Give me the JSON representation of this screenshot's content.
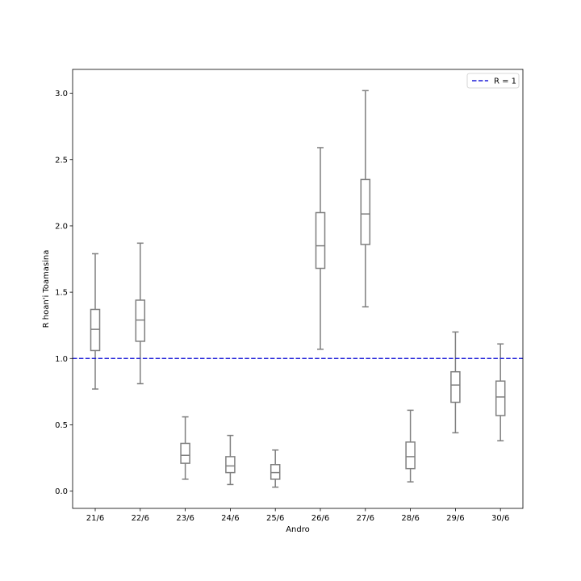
{
  "chart_data": {
    "type": "boxplot",
    "title": "",
    "xlabel": "Andro",
    "ylabel": "R hoan'i Toamasina",
    "categories": [
      "21/6",
      "22/6",
      "23/6",
      "24/6",
      "25/6",
      "26/6",
      "27/6",
      "28/6",
      "29/6",
      "30/6"
    ],
    "boxes": [
      {
        "whislo": 0.77,
        "q1": 1.06,
        "med": 1.22,
        "q3": 1.37,
        "whishi": 1.79
      },
      {
        "whislo": 0.81,
        "q1": 1.13,
        "med": 1.29,
        "q3": 1.44,
        "whishi": 1.87
      },
      {
        "whislo": 0.09,
        "q1": 0.21,
        "med": 0.27,
        "q3": 0.36,
        "whishi": 0.56
      },
      {
        "whislo": 0.05,
        "q1": 0.14,
        "med": 0.19,
        "q3": 0.26,
        "whishi": 0.42
      },
      {
        "whislo": 0.03,
        "q1": 0.09,
        "med": 0.14,
        "q3": 0.2,
        "whishi": 0.31
      },
      {
        "whislo": 1.07,
        "q1": 1.68,
        "med": 1.85,
        "q3": 2.1,
        "whishi": 2.59
      },
      {
        "whislo": 1.39,
        "q1": 1.86,
        "med": 2.09,
        "q3": 2.35,
        "whishi": 3.02
      },
      {
        "whislo": 0.07,
        "q1": 0.17,
        "med": 0.26,
        "q3": 0.37,
        "whishi": 0.61
      },
      {
        "whislo": 0.44,
        "q1": 0.67,
        "med": 0.8,
        "q3": 0.9,
        "whishi": 1.2
      },
      {
        "whislo": 0.38,
        "q1": 0.57,
        "med": 0.71,
        "q3": 0.83,
        "whishi": 1.11
      }
    ],
    "reference_line": {
      "y": 1.0,
      "label": "R = 1",
      "color": "#1f1fd8",
      "style": "dashed"
    },
    "ylim": [
      -0.13,
      3.18
    ],
    "yticks": [
      0.0,
      0.5,
      1.0,
      1.5,
      2.0,
      2.5,
      3.0
    ],
    "ytick_labels": [
      "0.0",
      "0.5",
      "1.0",
      "1.5",
      "2.0",
      "2.5",
      "3.0"
    ],
    "grid": false,
    "legend_position": "top-right",
    "colors": {
      "box": "#7f7f7f",
      "reference": "#1f1fd8",
      "axes": "#000000"
    }
  }
}
